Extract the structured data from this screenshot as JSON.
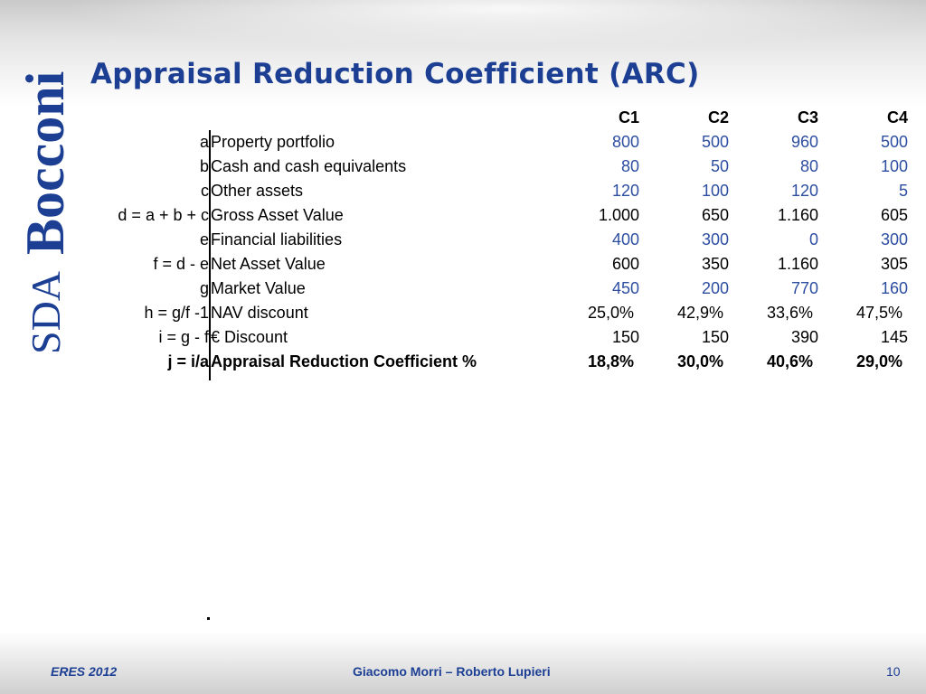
{
  "slide": {
    "title": "Appraisal Reduction Coefficient (ARC)",
    "logo_text": "SDA Bocconi",
    "footer_left": "ERES 2012",
    "footer_center": "Giacomo Morri – Roberto Lupieri",
    "page_number": "10"
  },
  "colors": {
    "title": "#1c3f94",
    "input_values": "#2c4da0",
    "footer": "#1c3f94"
  },
  "table": {
    "columns": [
      "C1",
      "C2",
      "C3",
      "C4"
    ],
    "rows": [
      {
        "formula": "a",
        "label": "Property portfolio",
        "values": [
          "800",
          "500",
          "960",
          "500"
        ]
      },
      {
        "formula": "b",
        "label": "Cash and cash equivalents",
        "values": [
          "80",
          "50",
          "80",
          "100"
        ]
      },
      {
        "formula": "c",
        "label": "Other assets",
        "values": [
          "120",
          "100",
          "120",
          "5"
        ]
      },
      {
        "formula": "d = a + b + c",
        "label": "Gross Asset Value",
        "values": [
          "1.000",
          "650",
          "1.160",
          "605"
        ]
      },
      {
        "formula": "e",
        "label": "Financial liabilities",
        "values": [
          "400",
          "300",
          "0",
          "300"
        ]
      },
      {
        "formula": "f = d - e",
        "label": "Net Asset Value",
        "values": [
          "600",
          "350",
          "1.160",
          "305"
        ]
      },
      {
        "formula": "g",
        "label": "Market Value",
        "values": [
          "450",
          "200",
          "770",
          "160"
        ]
      },
      {
        "formula": "h = g/f -1",
        "label": "NAV discount",
        "values": [
          "25,0%",
          "42,9%",
          "33,6%",
          "47,5%"
        ]
      },
      {
        "formula": "i = g - f",
        "label": "€ Discount",
        "values": [
          "150",
          "150",
          "390",
          "145"
        ]
      },
      {
        "formula": "j = i/a",
        "label": "Appraisal Reduction Coefficient %",
        "values": [
          "18,8%",
          "30,0%",
          "40,6%",
          "29,0%"
        ]
      }
    ]
  }
}
